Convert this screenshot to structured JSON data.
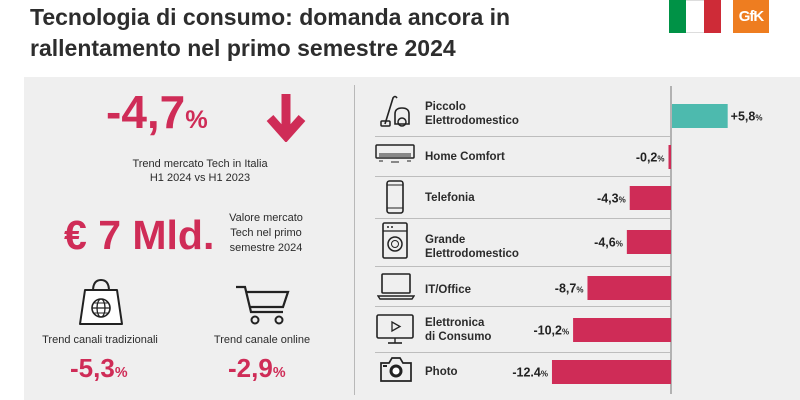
{
  "header": {
    "title_line1": "Tecnologia di consumo: domanda ancora in",
    "title_line2": "rallentamento nel primo semestre 2024",
    "brand": "GfK"
  },
  "flag_colors": [
    "#009246",
    "#ffffff",
    "#ce2b37"
  ],
  "left": {
    "trend_value": "-4,7",
    "trend_unit": "%",
    "trend_label_line1": "Trend mercato Tech in Italia",
    "trend_label_line2": "H1 2024 vs H1 2023",
    "market_value": "€ 7 Mld.",
    "market_label_line1": "Valore mercato",
    "market_label_line2": "Tech nel primo",
    "market_label_line3": "semestre 2024",
    "traditional_label": "Trend canali tradizionali",
    "traditional_value": "-5,3",
    "online_label": "Trend canale online",
    "online_value": "-2,9",
    "percent_sign": "%"
  },
  "colors": {
    "negative": "#cf2c57",
    "positive": "#4dbaae",
    "accent": "#cf2c57"
  },
  "chart_data": {
    "type": "bar",
    "orientation": "horizontal",
    "categories": [
      "Piccolo Elettrodomestico",
      "Home Comfort",
      "Telefonia",
      "Grande Elettrodomestico",
      "IT/Office",
      "Elettronica di Consumo",
      "Photo"
    ],
    "category_lines": [
      [
        "Piccolo",
        "Elettrodomestico"
      ],
      [
        "Home Comfort"
      ],
      [
        "Telefonia"
      ],
      [
        "Grande",
        "Elettrodomestico"
      ],
      [
        "IT/Office"
      ],
      [
        "Elettronica",
        "di Consumo"
      ],
      [
        "Photo"
      ]
    ],
    "values": [
      5.8,
      -0.2,
      -4.3,
      -4.6,
      -8.7,
      -10.2,
      -12.4
    ],
    "value_labels": [
      "+5,8",
      "-0,2",
      "-4,3",
      "-4,6",
      "-8,7",
      "-10,2",
      "-12.4"
    ],
    "unit": "%",
    "icons": [
      "vacuum-icon",
      "air-conditioner-icon",
      "smartphone-icon",
      "washing-machine-icon",
      "laptop-icon",
      "tv-icon",
      "camera-icon"
    ]
  }
}
